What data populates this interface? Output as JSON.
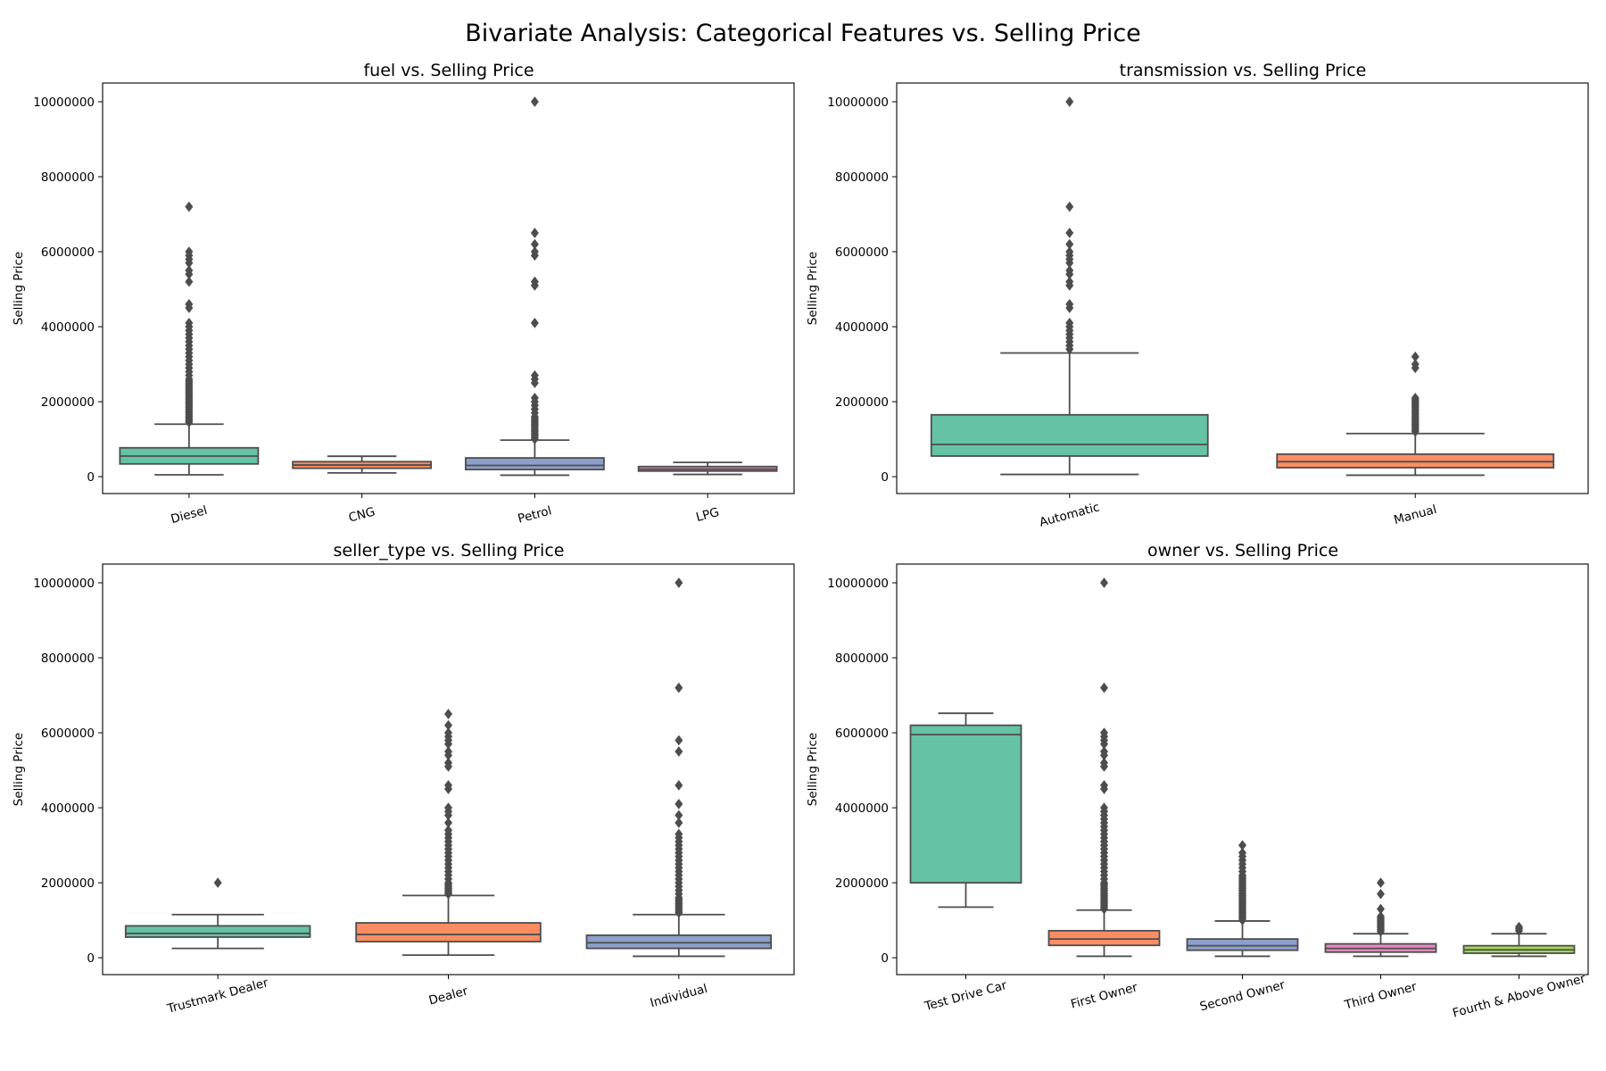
{
  "figure": {
    "title": "Bivariate Analysis: Categorical Features vs. Selling Price"
  },
  "colors": {
    "palette": [
      "#66c2a5",
      "#fc8d62",
      "#8da0cb",
      "#e78ac3",
      "#a6d854"
    ],
    "line": "#4d4d4d"
  },
  "chart_data": [
    {
      "type": "box",
      "title": "fuel vs. Selling Price",
      "xlabel": "",
      "ylabel": "Selling Price",
      "ylim": [
        -450000,
        10500000
      ],
      "yticks": [
        "0",
        "2000000",
        "4000000",
        "6000000",
        "8000000",
        "10000000"
      ],
      "grid": false,
      "categories": [
        "Diesel",
        "CNG",
        "Petrol",
        "LPG"
      ],
      "boxes": [
        {
          "whislo": 50000,
          "q1": 340000,
          "med": 550000,
          "q3": 770000,
          "whishi": 1400000,
          "fliers": [
            1450000,
            1500000,
            1550000,
            1600000,
            1650000,
            1700000,
            1750000,
            1800000,
            1850000,
            1900000,
            1950000,
            2000000,
            2050000,
            2100000,
            2150000,
            2200000,
            2250000,
            2300000,
            2350000,
            2400000,
            2450000,
            2500000,
            2550000,
            2600000,
            2700000,
            2800000,
            2900000,
            3000000,
            3100000,
            3200000,
            3300000,
            3400000,
            3500000,
            3600000,
            3700000,
            3800000,
            3900000,
            4000000,
            4100000,
            4500000,
            4600000,
            5200000,
            5400000,
            5500000,
            5700000,
            5800000,
            5900000,
            6000000,
            7200000
          ]
        },
        {
          "whislo": 100000,
          "q1": 225000,
          "med": 310000,
          "q3": 400000,
          "whishi": 545000,
          "fliers": []
        },
        {
          "whislo": 40000,
          "q1": 190000,
          "med": 300000,
          "q3": 500000,
          "whishi": 975000,
          "fliers": [
            1000000,
            1050000,
            1100000,
            1150000,
            1200000,
            1250000,
            1300000,
            1350000,
            1400000,
            1450000,
            1500000,
            1550000,
            1600000,
            1700000,
            1800000,
            1900000,
            2000000,
            2100000,
            2500000,
            2600000,
            2700000,
            4100000,
            5100000,
            5200000,
            5900000,
            6000000,
            6200000,
            6500000,
            10000000
          ]
        },
        {
          "whislo": 60000,
          "q1": 150000,
          "med": 200000,
          "q3": 270000,
          "whishi": 380000,
          "fliers": []
        }
      ]
    },
    {
      "type": "box",
      "title": "transmission vs. Selling Price",
      "xlabel": "",
      "ylabel": "Selling Price",
      "ylim": [
        -450000,
        10500000
      ],
      "yticks": [
        "0",
        "2000000",
        "4000000",
        "6000000",
        "8000000",
        "10000000"
      ],
      "grid": false,
      "categories": [
        "Automatic",
        "Manual"
      ],
      "boxes": [
        {
          "whislo": 60000,
          "q1": 550000,
          "med": 860000,
          "q3": 1650000,
          "whishi": 3300000,
          "fliers": [
            3400000,
            3500000,
            3600000,
            3700000,
            3800000,
            3900000,
            4000000,
            4100000,
            4500000,
            4600000,
            5100000,
            5200000,
            5400000,
            5500000,
            5700000,
            5800000,
            5900000,
            6000000,
            6200000,
            6500000,
            7200000,
            10000000
          ]
        },
        {
          "whislo": 40000,
          "q1": 240000,
          "med": 400000,
          "q3": 600000,
          "whishi": 1150000,
          "fliers": [
            1200000,
            1250000,
            1300000,
            1350000,
            1400000,
            1450000,
            1500000,
            1550000,
            1600000,
            1650000,
            1700000,
            1750000,
            1800000,
            1850000,
            1900000,
            1950000,
            2000000,
            2050000,
            2100000,
            2900000,
            3000000,
            3200000
          ]
        }
      ]
    },
    {
      "type": "box",
      "title": "seller_type vs. Selling Price",
      "xlabel": "",
      "ylabel": "Selling Price",
      "ylim": [
        -450000,
        10500000
      ],
      "yticks": [
        "0",
        "2000000",
        "4000000",
        "6000000",
        "8000000",
        "10000000"
      ],
      "grid": false,
      "categories": [
        "Trustmark Dealer",
        "Dealer",
        "Individual"
      ],
      "boxes": [
        {
          "whislo": 250000,
          "q1": 550000,
          "med": 650000,
          "q3": 850000,
          "whishi": 1150000,
          "fliers": [
            2000000
          ]
        },
        {
          "whislo": 70000,
          "q1": 430000,
          "med": 620000,
          "q3": 930000,
          "whishi": 1660000,
          "fliers": [
            1700000,
            1750000,
            1800000,
            1850000,
            1900000,
            1950000,
            2000000,
            2100000,
            2200000,
            2300000,
            2400000,
            2500000,
            2600000,
            2700000,
            2800000,
            2900000,
            3000000,
            3100000,
            3200000,
            3300000,
            3400000,
            3600000,
            3800000,
            3900000,
            4000000,
            4500000,
            4600000,
            5100000,
            5200000,
            5400000,
            5500000,
            5700000,
            5800000,
            5900000,
            6000000,
            6200000,
            6500000
          ]
        },
        {
          "whislo": 40000,
          "q1": 250000,
          "med": 400000,
          "q3": 600000,
          "whishi": 1150000,
          "fliers": [
            1200000,
            1250000,
            1300000,
            1350000,
            1400000,
            1450000,
            1500000,
            1550000,
            1600000,
            1700000,
            1800000,
            1900000,
            2000000,
            2100000,
            2200000,
            2300000,
            2400000,
            2500000,
            2600000,
            2700000,
            2800000,
            2900000,
            3000000,
            3100000,
            3200000,
            3300000,
            3600000,
            3800000,
            4100000,
            4600000,
            5500000,
            5800000,
            7200000,
            10000000
          ]
        }
      ]
    },
    {
      "type": "box",
      "title": "owner vs. Selling Price",
      "xlabel": "",
      "ylabel": "Selling Price",
      "ylim": [
        -450000,
        10500000
      ],
      "yticks": [
        "0",
        "2000000",
        "4000000",
        "6000000",
        "8000000",
        "10000000"
      ],
      "grid": false,
      "categories": [
        "Test Drive Car",
        "First Owner",
        "Second Owner",
        "Third Owner",
        "Fourth & Above Owner"
      ],
      "boxes": [
        {
          "whislo": 1350000,
          "q1": 2000000,
          "med": 5950000,
          "q3": 6200000,
          "whishi": 6520000,
          "fliers": []
        },
        {
          "whislo": 40000,
          "q1": 330000,
          "med": 500000,
          "q3": 720000,
          "whishi": 1270000,
          "fliers": [
            1300000,
            1350000,
            1400000,
            1450000,
            1500000,
            1550000,
            1600000,
            1650000,
            1700000,
            1750000,
            1800000,
            1850000,
            1900000,
            1950000,
            2000000,
            2100000,
            2200000,
            2300000,
            2400000,
            2500000,
            2600000,
            2700000,
            2800000,
            2900000,
            3000000,
            3100000,
            3200000,
            3300000,
            3400000,
            3500000,
            3600000,
            3700000,
            3800000,
            3900000,
            4000000,
            4500000,
            4600000,
            5100000,
            5200000,
            5400000,
            5500000,
            5700000,
            5800000,
            5900000,
            6000000,
            7200000,
            10000000
          ]
        },
        {
          "whislo": 40000,
          "q1": 200000,
          "med": 320000,
          "q3": 500000,
          "whishi": 980000,
          "fliers": [
            1000000,
            1050000,
            1100000,
            1150000,
            1200000,
            1250000,
            1300000,
            1350000,
            1400000,
            1450000,
            1500000,
            1550000,
            1600000,
            1650000,
            1700000,
            1750000,
            1800000,
            1850000,
            1900000,
            1950000,
            2000000,
            2050000,
            2100000,
            2150000,
            2200000,
            2300000,
            2400000,
            2500000,
            2600000,
            2700000,
            2800000,
            3000000
          ]
        },
        {
          "whislo": 40000,
          "q1": 150000,
          "med": 250000,
          "q3": 370000,
          "whishi": 640000,
          "fliers": [
            700000,
            750000,
            800000,
            850000,
            900000,
            950000,
            1000000,
            1050000,
            1100000,
            1300000,
            1700000,
            2000000
          ]
        },
        {
          "whislo": 40000,
          "q1": 120000,
          "med": 210000,
          "q3": 320000,
          "whishi": 640000,
          "fliers": [
            720000,
            780000,
            820000
          ]
        }
      ]
    }
  ]
}
